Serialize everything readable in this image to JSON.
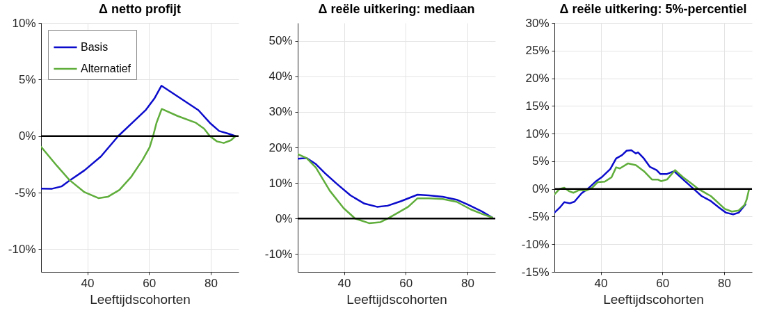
{
  "chart_data": [
    {
      "type": "line",
      "title": "Δ netto profijt",
      "xlabel": "Leeftijdscohorten",
      "xlim": [
        25,
        89
      ],
      "xticks": [
        40,
        60,
        80
      ],
      "ylim": [
        -12,
        10
      ],
      "yticks": [
        {
          "value": -10,
          "label": "-10%"
        },
        {
          "value": -5,
          "label": "-5%"
        },
        {
          "value": 0,
          "label": "0%"
        },
        {
          "value": 5,
          "label": "5%"
        },
        {
          "value": 10,
          "label": "10%"
        }
      ],
      "grid": true,
      "legend": "top left",
      "ref_lines": [
        {
          "axis": "y",
          "value": 0,
          "color": "#000000"
        }
      ],
      "series": [
        {
          "name": "Basis",
          "color": "#0b0bcc",
          "x": [
            25,
            28.6,
            31.6,
            34.2,
            39.1,
            44.4,
            50,
            54.9,
            59,
            61.7,
            64,
            69.2,
            76,
            79.7,
            82.7,
            85.7,
            88
          ],
          "values": [
            -4.64,
            -4.65,
            -4.45,
            -3.94,
            -3.02,
            -1.8,
            0,
            1.27,
            2.33,
            3.31,
            4.45,
            3.52,
            2.29,
            1.17,
            0.45,
            0.21,
            0
          ]
        },
        {
          "name": "Alternatief",
          "color": "#5fad3b",
          "x": [
            25,
            30.1,
            34.2,
            39.1,
            43.6,
            46.6,
            50.4,
            54.1,
            57.9,
            60.2,
            61.3,
            62.4,
            64.1,
            69.2,
            75.2,
            77.8,
            79.7,
            82,
            84.2,
            86.5,
            88
          ],
          "values": [
            -0.94,
            -2.61,
            -3.88,
            -4.96,
            -5.48,
            -5.37,
            -4.76,
            -3.64,
            -2.1,
            -0.98,
            0,
            1.17,
            2.4,
            1.78,
            1.17,
            0.66,
            0,
            -0.47,
            -0.61,
            -0.37,
            0
          ]
        }
      ]
    },
    {
      "type": "line",
      "title": "Δ reële uitkering: mediaan",
      "xlabel": "Leeftijdscohorten",
      "xlim": [
        25,
        89
      ],
      "xticks": [
        40,
        60,
        80
      ],
      "ylim": [
        -15,
        55
      ],
      "yticks": [
        {
          "value": -10,
          "label": "-10%"
        },
        {
          "value": 0,
          "label": "0%"
        },
        {
          "value": 10,
          "label": "10%"
        },
        {
          "value": 20,
          "label": "20%"
        },
        {
          "value": 30,
          "label": "30%"
        },
        {
          "value": 40,
          "label": "40%"
        },
        {
          "value": 50,
          "label": "50%"
        }
      ],
      "grid": true,
      "ref_lines": [
        {
          "axis": "y",
          "value": 0,
          "color": "#000000"
        }
      ],
      "series": [
        {
          "color": "#0b0bcc",
          "x": [
            25,
            27.9,
            30.9,
            33.9,
            37.6,
            42.1,
            46.6,
            50.7,
            54.1,
            58.5,
            63.8,
            67.5,
            72,
            76.5,
            80.2,
            84.7,
            88
          ],
          "values": [
            16.8,
            17,
            15.3,
            12.7,
            9.8,
            6.5,
            4.2,
            3.3,
            3.6,
            4.9,
            6.7,
            6.5,
            6.1,
            5.3,
            3.9,
            2,
            0.3
          ]
        },
        {
          "color": "#5fad3b",
          "x": [
            25,
            27.9,
            30.9,
            35.4,
            39.9,
            43.6,
            48.1,
            51.8,
            54.1,
            57,
            60.8,
            63.8,
            67.5,
            72,
            76.5,
            81,
            84.7,
            88
          ],
          "values": [
            18.1,
            17,
            14.3,
            7.8,
            2.9,
            0,
            -1.3,
            -1,
            0,
            1.4,
            3.3,
            5.7,
            5.7,
            5.5,
            4.7,
            2.6,
            1.3,
            0.3
          ]
        }
      ]
    },
    {
      "type": "line",
      "title": "Δ reële uitkering: 5%-percentiel",
      "xlabel": "Leeftijdscohorten",
      "xlim": [
        25,
        89
      ],
      "xticks": [
        40,
        60,
        80
      ],
      "ylim": [
        -15,
        30
      ],
      "yticks": [
        {
          "value": -15,
          "label": "-15%"
        },
        {
          "value": -10,
          "label": "-10%"
        },
        {
          "value": -5,
          "label": "-5%"
        },
        {
          "value": 0,
          "label": "0%"
        },
        {
          "value": 5,
          "label": "5%"
        },
        {
          "value": 10,
          "label": "10%"
        },
        {
          "value": 15,
          "label": "15%"
        },
        {
          "value": 20,
          "label": "20%"
        },
        {
          "value": 25,
          "label": "25%"
        },
        {
          "value": 30,
          "label": "30%"
        }
      ],
      "grid": true,
      "ref_lines": [
        {
          "axis": "y",
          "value": 0,
          "color": "#000000"
        }
      ],
      "series": [
        {
          "color": "#0b0bcc",
          "x": [
            25,
            26.7,
            28.2,
            30,
            31.5,
            33.8,
            36,
            38.3,
            40.5,
            43.1,
            45,
            46.9,
            48.4,
            49.9,
            51.4,
            52.1,
            54,
            55.9,
            58.1,
            59.3,
            61.5,
            63.8,
            66.7,
            70.1,
            72.7,
            75.7,
            78.4,
            80.6,
            82.9,
            84.7,
            86.9
          ],
          "values": [
            -4.3,
            -3.4,
            -2.4,
            -2.6,
            -2.3,
            -0.8,
            0.1,
            1.3,
            2.2,
            3.6,
            5.5,
            6.1,
            6.9,
            7,
            6.4,
            6.6,
            5.5,
            4,
            3.4,
            2.7,
            2.7,
            3.2,
            1.7,
            0,
            -1.3,
            -2.2,
            -3.4,
            -4.3,
            -4.6,
            -4.3,
            -2.8
          ]
        },
        {
          "color": "#5fad3b",
          "x": [
            25,
            26.7,
            28.2,
            29.7,
            31.2,
            33,
            35.3,
            37.2,
            39,
            41.3,
            43.5,
            45,
            46.2,
            48.8,
            51.4,
            54,
            56.6,
            58.5,
            59.6,
            61.5,
            64.1,
            66.7,
            69.8,
            71.6,
            75.7,
            80.2,
            82.5,
            84.7,
            86.6,
            87.3,
            88
          ],
          "values": [
            -1,
            0,
            0.2,
            -0.4,
            -0.7,
            -0.2,
            -0.3,
            0.2,
            1.2,
            1.3,
            2.1,
            3.9,
            3.7,
            4.6,
            4.3,
            3.2,
            1.7,
            1.7,
            1.4,
            1.7,
            3.4,
            2.1,
            0.8,
            0,
            -1.3,
            -3.6,
            -4.1,
            -3.9,
            -2.9,
            -1.9,
            -0.2
          ]
        }
      ]
    }
  ]
}
